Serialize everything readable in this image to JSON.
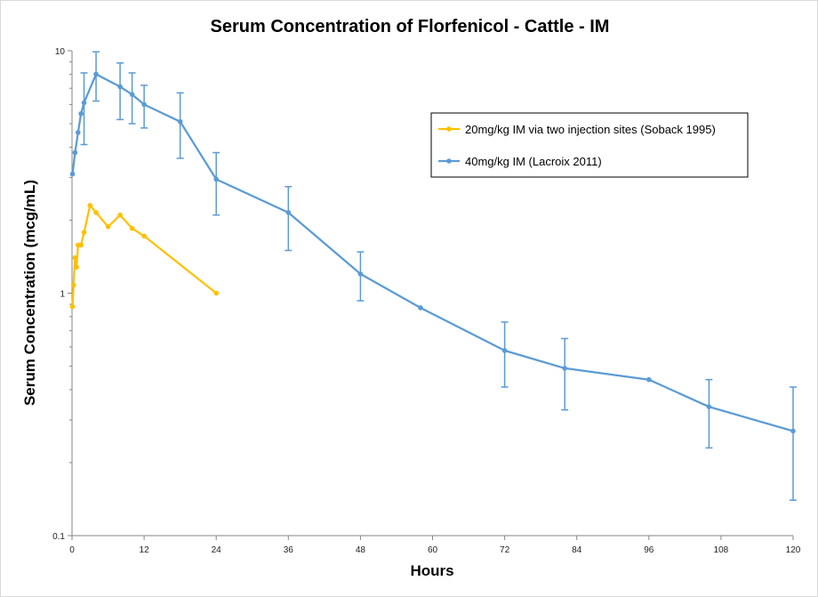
{
  "chart_data": {
    "type": "line",
    "title": "Serum Concentration of Florfenicol - Cattle - IM",
    "xlabel": "Hours",
    "ylabel": "Serum Concentration (mcg/mL)",
    "xlim": [
      0,
      120
    ],
    "ylim": [
      0.1,
      10
    ],
    "y_scale": "log",
    "x_ticks": [
      0,
      12,
      24,
      36,
      48,
      60,
      72,
      84,
      96,
      108,
      120
    ],
    "y_ticks": [
      0.1,
      1,
      10
    ],
    "y_tick_labels": [
      "0.1",
      "1",
      "10"
    ],
    "grid": false,
    "legend_position": "top-right",
    "series": [
      {
        "name": "20mg/kg IM via two injection sites (Soback 1995)",
        "color": "#FFC000",
        "x": [
          0.083,
          0.25,
          0.5,
          0.75,
          1,
          1.5,
          2,
          3,
          4,
          6,
          8,
          10,
          12,
          24
        ],
        "y": [
          0.88,
          1.08,
          1.4,
          1.28,
          1.58,
          1.58,
          1.78,
          2.3,
          2.15,
          1.88,
          2.1,
          1.85,
          1.72,
          1.0
        ]
      },
      {
        "name": "40mg/kg IM (Lacroix 2011)",
        "color": "#5B9BD5",
        "x": [
          0.083,
          0.5,
          1,
          1.5,
          2,
          4,
          8,
          10,
          12,
          18,
          24,
          36,
          48,
          58,
          72,
          82,
          96,
          106,
          120
        ],
        "y": [
          3.1,
          3.8,
          4.6,
          5.5,
          6.1,
          8.0,
          7.1,
          6.6,
          6.0,
          5.1,
          2.95,
          2.15,
          1.2,
          0.87,
          0.58,
          0.49,
          0.44,
          0.34,
          0.27
        ],
        "err_low": [
          null,
          null,
          null,
          null,
          4.1,
          6.2,
          5.2,
          5.0,
          4.8,
          3.6,
          2.1,
          1.5,
          0.93,
          null,
          0.41,
          0.33,
          null,
          0.23,
          0.14
        ],
        "err_high": [
          null,
          null,
          null,
          null,
          8.1,
          9.9,
          8.9,
          8.1,
          7.2,
          6.7,
          3.8,
          2.75,
          1.48,
          null,
          0.76,
          0.65,
          null,
          0.44,
          0.41
        ]
      }
    ]
  }
}
